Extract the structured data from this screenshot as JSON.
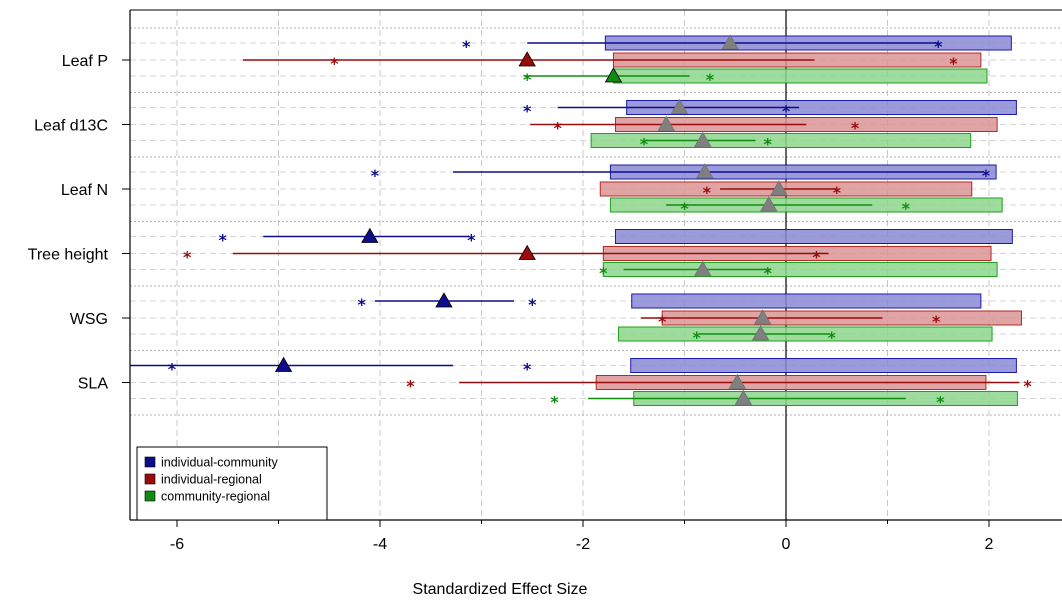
{
  "chart_data": {
    "type": "box-interval",
    "xlabel": "Standardized Effect Size",
    "xlim": [
      -6.5,
      2.7
    ],
    "x_ticks": [
      -6,
      -4,
      -2,
      0,
      2
    ],
    "x_tick_labels": [
      "-6",
      "-4",
      "-2",
      "0",
      "2"
    ],
    "vertical_reference_line": 0,
    "grid": true,
    "legend_position": "bottom-left",
    "categories": [
      "Leaf P",
      "Leaf d13C",
      "Leaf N",
      "Tree height",
      "WSG",
      "SLA"
    ],
    "series": [
      {
        "name": "individual-community",
        "fill": "#8a8ad6",
        "edge": "#1a1aa8",
        "dark": "#0d0d8c",
        "items": [
          {
            "box": [
              -1.78,
              2.22
            ],
            "whisker": [
              -2.55,
              1.5
            ],
            "stars": [
              -3.15,
              1.5
            ],
            "mean": -0.55,
            "sig": false
          },
          {
            "box": [
              -1.57,
              2.27
            ],
            "whisker": [
              -2.25,
              0.13
            ],
            "stars": [
              -2.55,
              0.0
            ],
            "mean": -1.05,
            "sig": false
          },
          {
            "box": [
              -1.73,
              2.07
            ],
            "whisker": [
              -3.28,
              1.95
            ],
            "stars": [
              -4.05,
              1.97
            ],
            "mean": -0.8,
            "sig": false
          },
          {
            "box": [
              -1.68,
              2.23
            ],
            "whisker": [
              -5.15,
              -3.12
            ],
            "stars": [
              -5.55,
              -3.1
            ],
            "mean": -4.1,
            "sig": true
          },
          {
            "box": [
              -1.52,
              1.92
            ],
            "whisker": [
              -4.05,
              -2.68
            ],
            "stars": [
              -4.18,
              -2.5
            ],
            "mean": -3.37,
            "sig": true
          },
          {
            "box": [
              -1.53,
              2.27
            ],
            "whisker": [
              -6.5,
              -3.28
            ],
            "stars": [
              -6.05,
              -2.55
            ],
            "mean": -4.95,
            "sig": true
          }
        ]
      },
      {
        "name": "individual-regional",
        "fill": "#dc9494",
        "edge": "#b42828",
        "dark": "#9a0c0c",
        "items": [
          {
            "box": [
              -1.7,
              1.92
            ],
            "whisker": [
              -5.35,
              0.28
            ],
            "stars": [
              -4.45,
              1.65
            ],
            "mean": -2.55,
            "sig": true
          },
          {
            "box": [
              -1.68,
              2.08
            ],
            "whisker": [
              -2.52,
              0.2
            ],
            "stars": [
              -2.25,
              0.68
            ],
            "mean": -1.18,
            "sig": false
          },
          {
            "box": [
              -1.83,
              1.83
            ],
            "whisker": [
              -0.65,
              0.5
            ],
            "stars": [
              -0.78,
              0.5
            ],
            "mean": -0.07,
            "sig": false
          },
          {
            "box": [
              -1.8,
              2.02
            ],
            "whisker": [
              -5.45,
              0.42
            ],
            "stars": [
              -5.9,
              0.3
            ],
            "mean": -2.55,
            "sig": true
          },
          {
            "box": [
              -1.22,
              2.32
            ],
            "whisker": [
              -1.43,
              0.95
            ],
            "stars": [
              -1.22,
              1.48
            ],
            "mean": -0.23,
            "sig": false
          },
          {
            "box": [
              -1.87,
              1.97
            ],
            "whisker": [
              -3.22,
              2.3
            ],
            "stars": [
              -3.7,
              2.38
            ],
            "mean": -0.48,
            "sig": false
          }
        ]
      },
      {
        "name": "community-regional",
        "fill": "#8cd68c",
        "edge": "#1fa01f",
        "dark": "#108c10",
        "items": [
          {
            "box": [
              -1.7,
              1.98
            ],
            "whisker": [
              -2.58,
              -0.95
            ],
            "stars": [
              -2.55,
              -0.75
            ],
            "mean": -1.7,
            "sig": true
          },
          {
            "box": [
              -1.92,
              1.82
            ],
            "whisker": [
              -1.4,
              -0.3
            ],
            "stars": [
              -1.4,
              -0.18
            ],
            "mean": -0.82,
            "sig": false
          },
          {
            "box": [
              -1.73,
              2.13
            ],
            "whisker": [
              -1.18,
              0.85
            ],
            "stars": [
              -1.0,
              1.18
            ],
            "mean": -0.17,
            "sig": false
          },
          {
            "box": [
              -1.8,
              2.08
            ],
            "whisker": [
              -1.6,
              -0.15
            ],
            "stars": [
              -1.8,
              -0.18
            ],
            "mean": -0.82,
            "sig": false
          },
          {
            "box": [
              -1.65,
              2.03
            ],
            "whisker": [
              -0.85,
              0.42
            ],
            "stars": [
              -0.88,
              0.45
            ],
            "mean": -0.25,
            "sig": false
          },
          {
            "box": [
              -1.5,
              2.28
            ],
            "whisker": [
              -1.95,
              1.18
            ],
            "stars": [
              -2.28,
              1.52
            ],
            "mean": -0.42,
            "sig": false
          }
        ]
      }
    ]
  }
}
